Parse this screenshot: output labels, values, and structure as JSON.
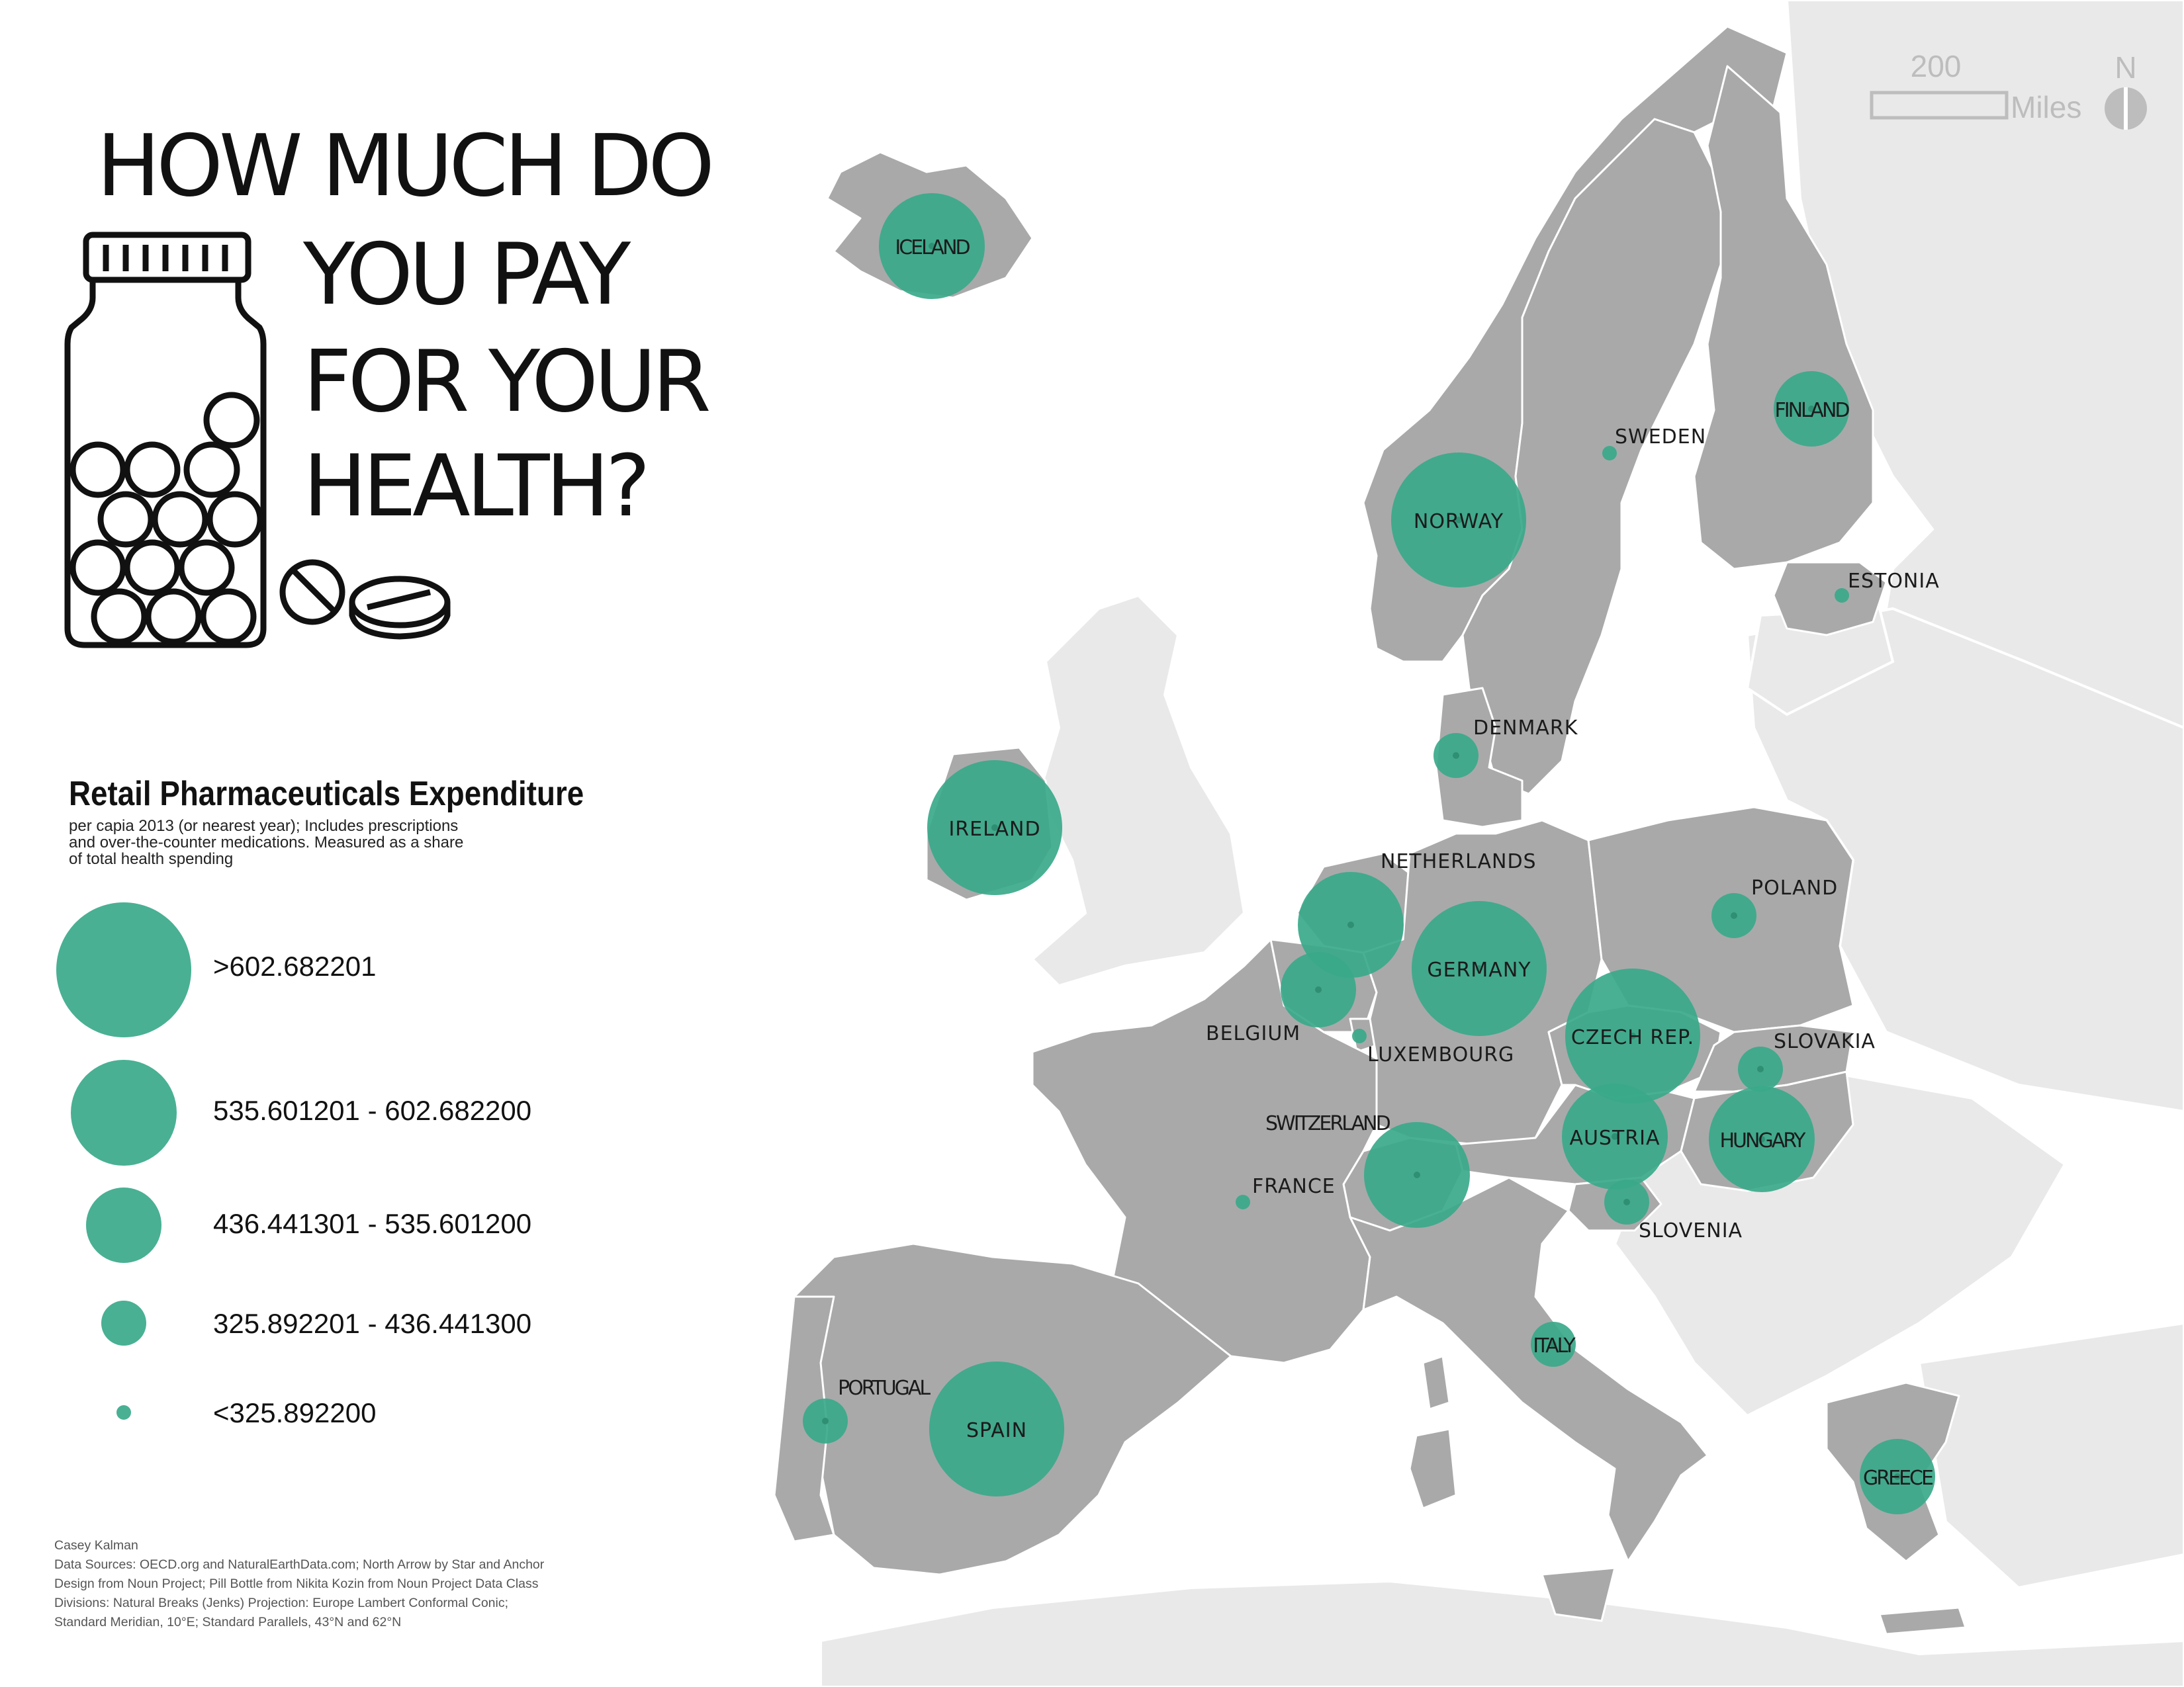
{
  "title": {
    "lines": [
      "HOW MUCH DO",
      "YOU PAY",
      "FOR YOUR",
      "HEALTH?"
    ]
  },
  "legend": {
    "title": "Retail Pharmaceuticals Expenditure",
    "subtitle_lines": [
      "per capia 2013 (or nearest year); Includes prescriptions",
      "and over-the-counter medications. Measured as a share",
      "of total health spending"
    ],
    "classes": [
      {
        "label": ">602.682201",
        "class": 5
      },
      {
        "label": "535.601201 - 602.682200",
        "class": 4
      },
      {
        "label": "436.441301 - 535.601200",
        "class": 3
      },
      {
        "label": "325.892201 - 436.441300",
        "class": 2
      },
      {
        "label": "<325.892200",
        "class": 1
      }
    ]
  },
  "scale_bar": {
    "value": "200",
    "unit": "Miles"
  },
  "north_arrow": {
    "label": "N"
  },
  "colors": {
    "symbol": "#3aa98a",
    "study_area": "#a9a9a9",
    "context_land": "#e9e9e9",
    "borders": "#ffffff"
  },
  "countries": [
    {
      "name": "ICELAND",
      "class": 4
    },
    {
      "name": "FINLAND",
      "class": 3
    },
    {
      "name": "SWEDEN",
      "class": 1
    },
    {
      "name": "NORWAY",
      "class": 5
    },
    {
      "name": "ESTONIA",
      "class": 1
    },
    {
      "name": "DENMARK",
      "class": 2
    },
    {
      "name": "IRELAND",
      "class": 5
    },
    {
      "name": "NETHERLANDS",
      "class": 4
    },
    {
      "name": "POLAND",
      "class": 2
    },
    {
      "name": "GERMANY",
      "class": 5
    },
    {
      "name": "BELGIUM",
      "class": 3
    },
    {
      "name": "LUXEMBOURG",
      "class": 1
    },
    {
      "name": "CZECH REP.",
      "class": 5
    },
    {
      "name": "SLOVAKIA",
      "class": 2
    },
    {
      "name": "AUSTRIA",
      "class": 4
    },
    {
      "name": "HUNGARY",
      "class": 4
    },
    {
      "name": "SWITZERLAND",
      "class": 4
    },
    {
      "name": "FRANCE",
      "class": 1
    },
    {
      "name": "SLOVENIA",
      "class": 2
    },
    {
      "name": "ITALY",
      "class": 2
    },
    {
      "name": "PORTUGAL",
      "class": 2
    },
    {
      "name": "SPAIN",
      "class": 5
    },
    {
      "name": "GREECE",
      "class": 3
    }
  ],
  "credits": [
    "Casey Kalman",
    "Data Sources: OECD.org  and NaturalEarthData.com; North Arrow by Star and Anchor",
    "Design from Noun Project; Pill Bottle from Nikita Kozin from Noun Project Data Class",
    "Divisions: Natural Breaks (Jenks) Projection: Europe Lambert Conformal Conic;",
    "Standard Meridian, 10°E; Standard Parallels, 43°N and 62°N"
  ]
}
